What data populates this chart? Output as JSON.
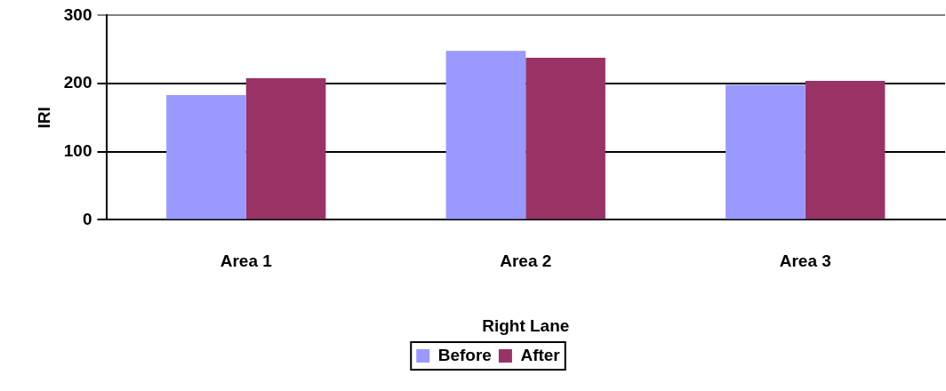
{
  "chart_data": {
    "type": "bar",
    "xlabel": "Right Lane",
    "ylabel": "IRI",
    "categories": [
      "Area 1",
      "Area 2",
      "Area 3"
    ],
    "series": [
      {
        "name": "Before",
        "color": "#9999ff",
        "values": [
          183,
          248,
          198
        ]
      },
      {
        "name": "After",
        "color": "#993366",
        "values": [
          208,
          238,
          204
        ]
      }
    ],
    "ylim": [
      0,
      300
    ],
    "yticks": [
      0,
      100,
      200,
      300
    ],
    "grid": "y",
    "legend": "bottom"
  }
}
